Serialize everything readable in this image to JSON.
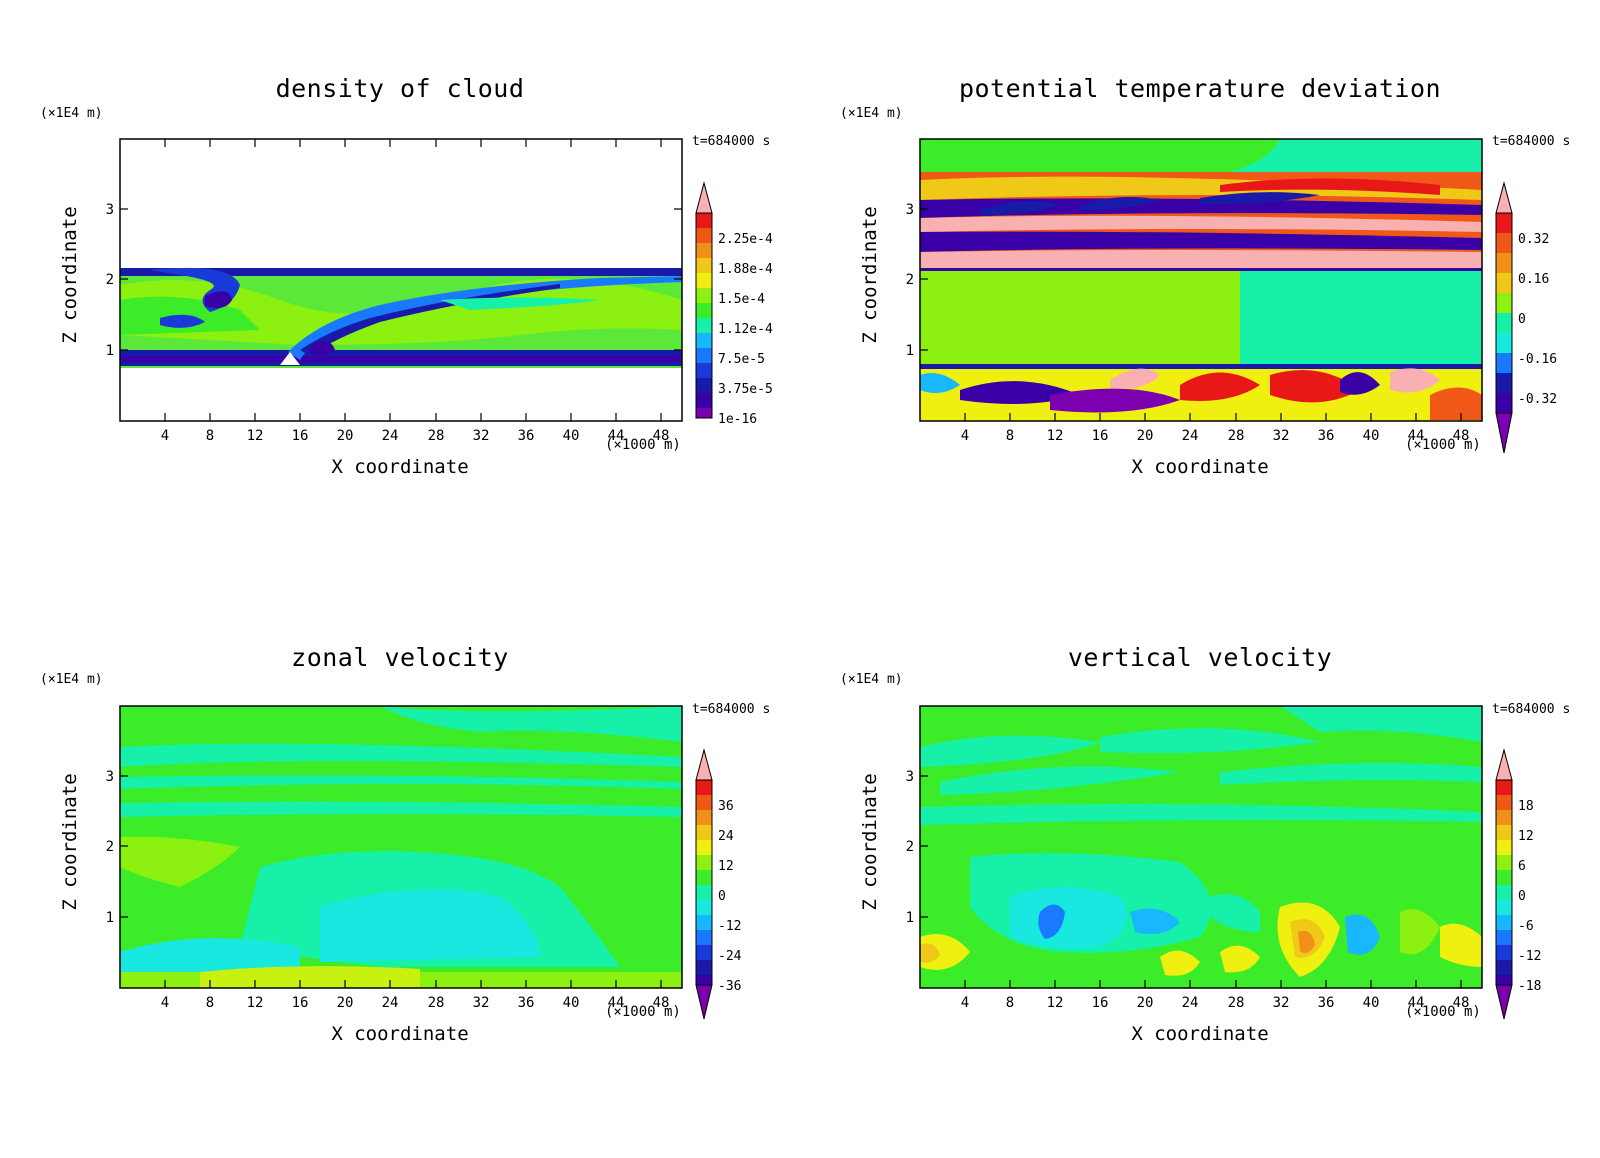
{
  "figure": {
    "common": {
      "xlabel": "X coordinate",
      "ylabel": "Z coordinate",
      "x_unit_label": "(×1000 m)",
      "y_scale_label": "(×1E4 m)",
      "time_label": "t=684000 s"
    }
  },
  "chart_data": [
    {
      "type": "heatmap",
      "title": "density of cloud",
      "xlabel": "X coordinate",
      "ylabel": "Z coordinate",
      "x_ticks": [
        4,
        8,
        12,
        16,
        20,
        24,
        28,
        32,
        36,
        40,
        44,
        48
      ],
      "y_ticks": [
        1,
        2,
        3
      ],
      "xlim": [
        0,
        50
      ],
      "ylim": [
        0,
        4
      ],
      "colorbar_labels": [
        "2.25e-4",
        "1.88e-4",
        "1.5e-4",
        "1.12e-4",
        "7.5e-5",
        "3.75e-5",
        "1e-16"
      ],
      "description_features": "cloud layer between Z=0.8 and Z=2.2 with shear plume rising from X≈15"
    },
    {
      "type": "heatmap",
      "title": "potential temperature deviation",
      "xlabel": "X coordinate",
      "ylabel": "Z coordinate",
      "x_ticks": [
        4,
        8,
        12,
        16,
        20,
        24,
        28,
        32,
        36,
        40,
        44,
        48
      ],
      "y_ticks": [
        1,
        2,
        3
      ],
      "xlim": [
        0,
        50
      ],
      "ylim": [
        0,
        4
      ],
      "colorbar_labels": [
        "0.32",
        "0.16",
        "0",
        "-0.16",
        "-0.32"
      ]
    },
    {
      "type": "heatmap",
      "title": "zonal velocity",
      "xlabel": "X coordinate",
      "ylabel": "Z coordinate",
      "x_ticks": [
        4,
        8,
        12,
        16,
        20,
        24,
        28,
        32,
        36,
        40,
        44,
        48
      ],
      "y_ticks": [
        1,
        2,
        3
      ],
      "xlim": [
        0,
        50
      ],
      "ylim": [
        0,
        4
      ],
      "colorbar_labels": [
        "36",
        "24",
        "12",
        "0",
        "-12",
        "-24",
        "-36"
      ]
    },
    {
      "type": "heatmap",
      "title": "vertical velocity",
      "xlabel": "X coordinate",
      "ylabel": "Z coordinate",
      "x_ticks": [
        4,
        8,
        12,
        16,
        20,
        24,
        28,
        32,
        36,
        40,
        44,
        48
      ],
      "y_ticks": [
        1,
        2,
        3
      ],
      "xlim": [
        0,
        50
      ],
      "ylim": [
        0,
        4
      ],
      "colorbar_labels": [
        "18",
        "12",
        "6",
        "0",
        "-6",
        "-12",
        "-18"
      ]
    }
  ],
  "colors": {
    "cb_palette": [
      "#7b00b0",
      "#3a00a8",
      "#1a1aa8",
      "#1a3ad8",
      "#1a7aff",
      "#18b8ff",
      "#18e8e0",
      "#16f0a8",
      "#18e870",
      "#3cec28",
      "#8cf010",
      "#c8f010",
      "#f0f010",
      "#f0c818",
      "#f09018",
      "#f05818",
      "#e81818",
      "#f8b0b0"
    ]
  }
}
